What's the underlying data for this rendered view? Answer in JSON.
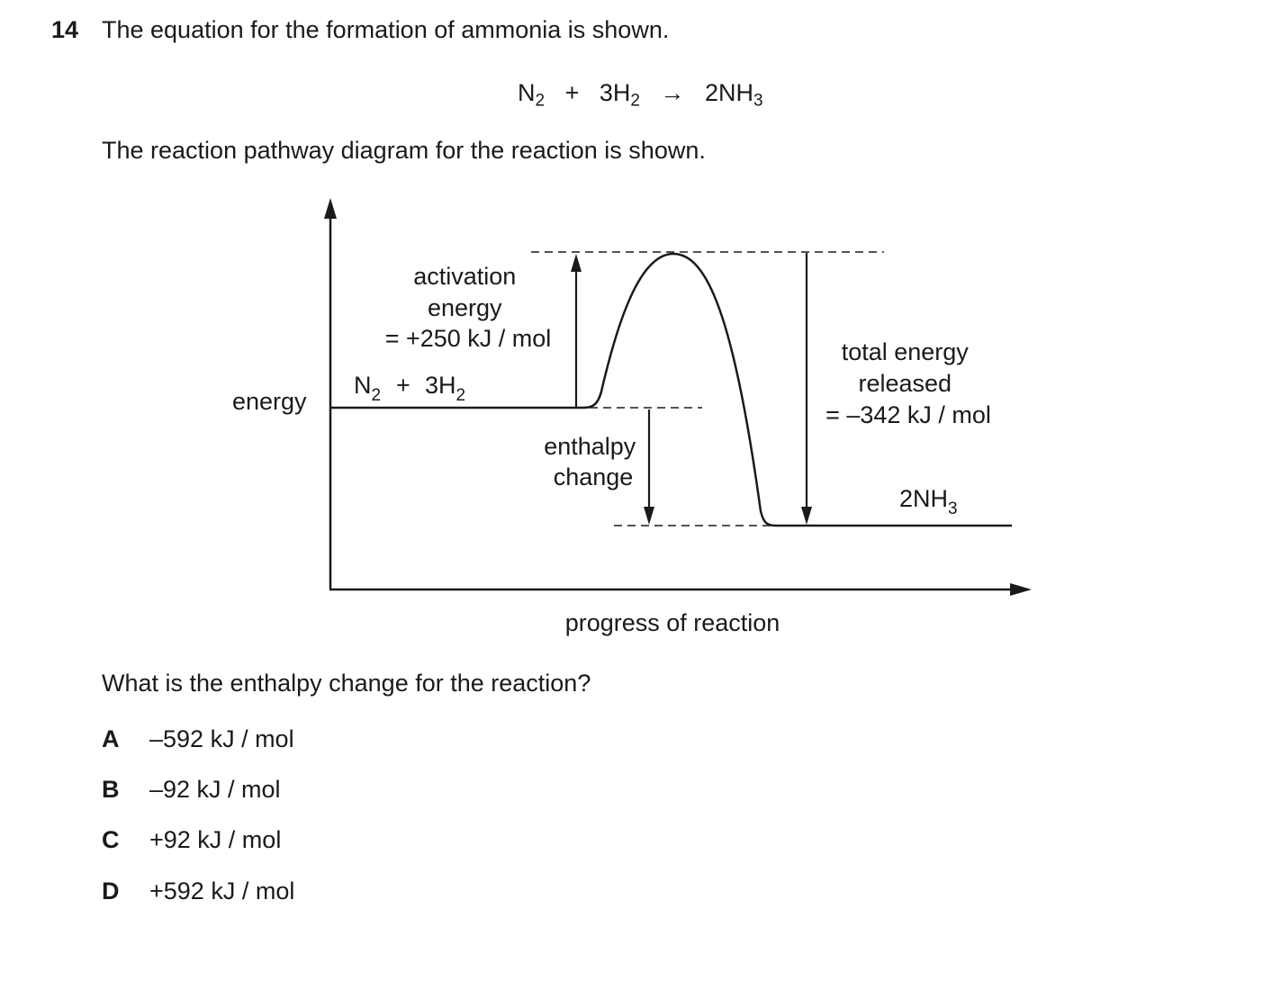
{
  "question": {
    "number": "14",
    "text": "The equation for the formation of ammonia is shown.",
    "equation": {
      "n_symbol": "N",
      "n_sub": "2",
      "plus": "+",
      "h_coeff": "3H",
      "h_sub": "2",
      "arrow": "→",
      "product": "2NH",
      "product_sub": "3"
    },
    "intro": "The reaction pathway diagram for the reaction is shown.",
    "prompt": "What is the enthalpy change for the reaction?",
    "options": [
      {
        "letter": "A",
        "text": "–592 kJ / mol"
      },
      {
        "letter": "B",
        "text": "–92 kJ / mol"
      },
      {
        "letter": "C",
        "text": "+92 kJ / mol"
      },
      {
        "letter": "D",
        "text": "+592 kJ / mol"
      }
    ]
  },
  "diagram": {
    "y_axis_label": "energy",
    "x_axis_label": "progress of reaction",
    "reactants": {
      "n_symbol": "N",
      "n_sub": "2",
      "plus": "+",
      "h_coeff": "3H",
      "h_sub": "2"
    },
    "product": {
      "symbol": "2NH",
      "sub": "3"
    },
    "activation_label": [
      "activation",
      "energy",
      "= +250 kJ / mol"
    ],
    "enthalpy_label": [
      "enthalpy",
      "change"
    ],
    "total_label": [
      "total energy",
      "released",
      "= –342 kJ / mol"
    ]
  }
}
